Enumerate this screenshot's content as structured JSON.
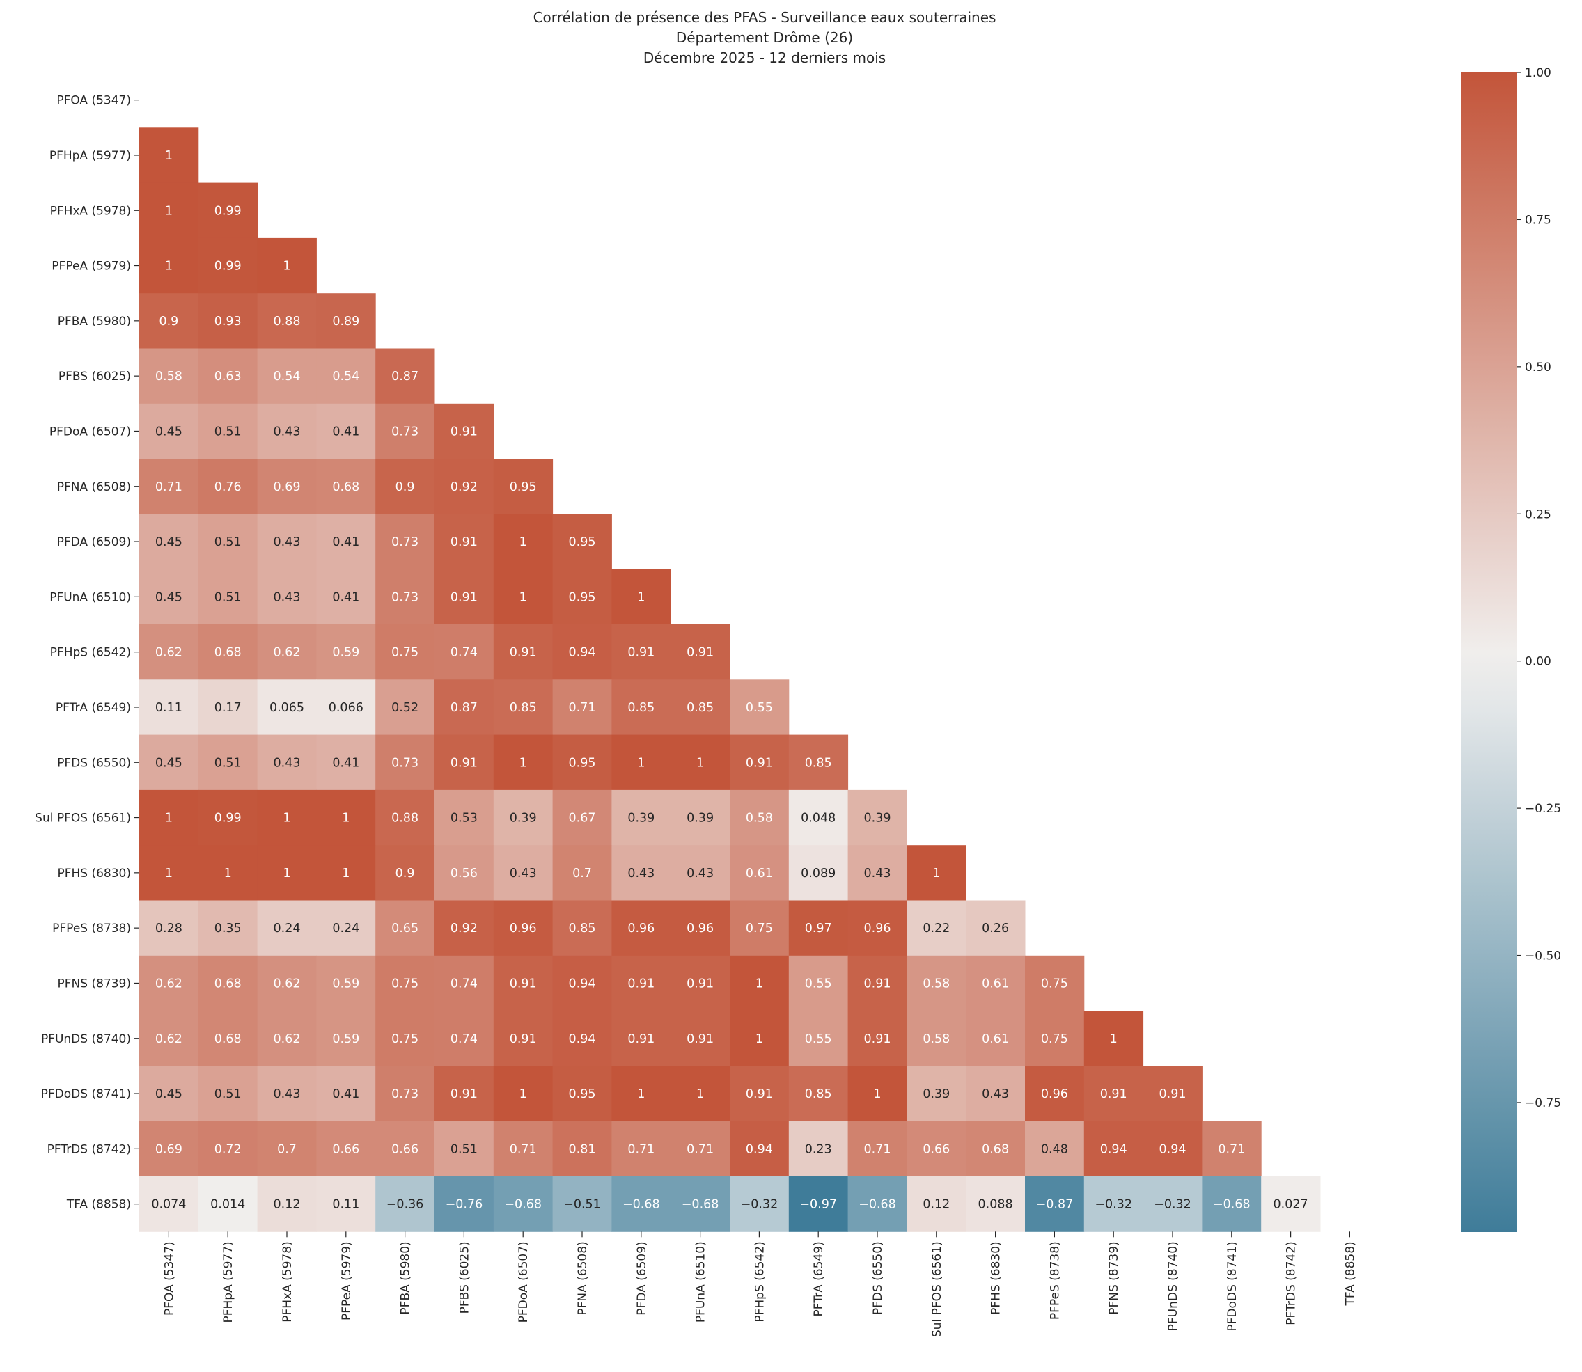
{
  "chart_data": {
    "type": "heatmap",
    "title": [
      "Corrélation de présence des PFAS - Surveillance eaux souterraines",
      "Département Drôme (26)",
      "Décembre 2025 - 12 derniers mois"
    ],
    "labels": [
      "PFOA (5347)",
      "PFHpA (5977)",
      "PFHxA (5978)",
      "PFPeA (5979)",
      "PFBA (5980)",
      "PFBS (6025)",
      "PFDoA (6507)",
      "PFNA (6508)",
      "PFDA (6509)",
      "PFUnA (6510)",
      "PFHpS (6542)",
      "PFTrA (6549)",
      "PFDS (6550)",
      "Sul PFOS (6561)",
      "PFHS (6830)",
      "PFPeS (8738)",
      "PFNS (8739)",
      "PFUnDS (8740)",
      "PFDoDS (8741)",
      "PFTrDS (8742)",
      "TFA (8858)"
    ],
    "mask": "upper-triangle-including-diagonal",
    "rows": [
      [],
      [
        1
      ],
      [
        1,
        0.99
      ],
      [
        1,
        0.99,
        1
      ],
      [
        0.9,
        0.93,
        0.88,
        0.89
      ],
      [
        0.58,
        0.63,
        0.54,
        0.54,
        0.87
      ],
      [
        0.45,
        0.51,
        0.43,
        0.41,
        0.73,
        0.91
      ],
      [
        0.71,
        0.76,
        0.69,
        0.68,
        0.9,
        0.92,
        0.95
      ],
      [
        0.45,
        0.51,
        0.43,
        0.41,
        0.73,
        0.91,
        1,
        0.95
      ],
      [
        0.45,
        0.51,
        0.43,
        0.41,
        0.73,
        0.91,
        1,
        0.95,
        1
      ],
      [
        0.62,
        0.68,
        0.62,
        0.59,
        0.75,
        0.74,
        0.91,
        0.94,
        0.91,
        0.91
      ],
      [
        0.11,
        0.17,
        0.065,
        0.066,
        0.52,
        0.87,
        0.85,
        0.71,
        0.85,
        0.85,
        0.55
      ],
      [
        0.45,
        0.51,
        0.43,
        0.41,
        0.73,
        0.91,
        1,
        0.95,
        1,
        1,
        0.91,
        0.85
      ],
      [
        1,
        0.99,
        1,
        1,
        0.88,
        0.53,
        0.39,
        0.67,
        0.39,
        0.39,
        0.58,
        0.048,
        0.39
      ],
      [
        1,
        1,
        1,
        1,
        0.9,
        0.56,
        0.43,
        0.7,
        0.43,
        0.43,
        0.61,
        0.089,
        0.43,
        1
      ],
      [
        0.28,
        0.35,
        0.24,
        0.24,
        0.65,
        0.92,
        0.96,
        0.85,
        0.96,
        0.96,
        0.75,
        0.97,
        0.96,
        0.22,
        0.26
      ],
      [
        0.62,
        0.68,
        0.62,
        0.59,
        0.75,
        0.74,
        0.91,
        0.94,
        0.91,
        0.91,
        1,
        0.55,
        0.91,
        0.58,
        0.61,
        0.75
      ],
      [
        0.62,
        0.68,
        0.62,
        0.59,
        0.75,
        0.74,
        0.91,
        0.94,
        0.91,
        0.91,
        1,
        0.55,
        0.91,
        0.58,
        0.61,
        0.75,
        1
      ],
      [
        0.45,
        0.51,
        0.43,
        0.41,
        0.73,
        0.91,
        1,
        0.95,
        1,
        1,
        0.91,
        0.85,
        1,
        0.39,
        0.43,
        0.96,
        0.91,
        0.91
      ],
      [
        0.69,
        0.72,
        0.7,
        0.66,
        0.66,
        0.51,
        0.71,
        0.81,
        0.71,
        0.71,
        0.94,
        0.23,
        0.71,
        0.66,
        0.68,
        0.48,
        0.94,
        0.94,
        0.71
      ],
      [
        0.074,
        0.014,
        0.12,
        0.11,
        -0.36,
        -0.76,
        -0.68,
        -0.51,
        -0.68,
        -0.68,
        -0.32,
        -0.97,
        -0.68,
        0.12,
        0.088,
        -0.87,
        -0.32,
        -0.32,
        -0.68,
        0.027
      ]
    ],
    "colorbar": {
      "ticks": [
        1.0,
        0.75,
        0.5,
        0.25,
        0.0,
        -0.25,
        -0.5,
        -0.75
      ],
      "tick_labels": [
        "1.00",
        "0.75",
        "0.50",
        "0.25",
        "0.00",
        "−0.25",
        "−0.50",
        "−0.75"
      ],
      "range": [
        -0.97,
        1.0
      ]
    },
    "colors": {
      "positive": "#c3553a",
      "center": "#f1f0ef",
      "negative": "#3f7c99"
    }
  }
}
